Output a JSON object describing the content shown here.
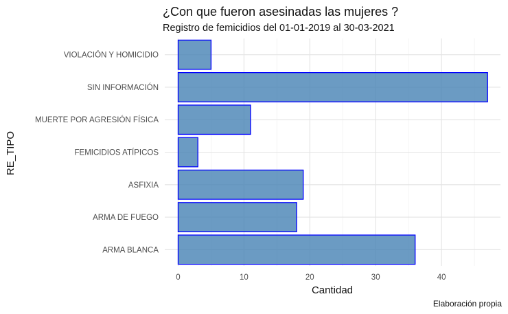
{
  "chart_data": {
    "type": "bar",
    "orientation": "horizontal",
    "title": "¿Con que fueron asesinadas las mujeres ?",
    "subtitle": "Registro de femicidios del 01-01-2019 al 30-03-2021",
    "caption": "Elaboración propia",
    "xlabel": "Cantidad",
    "ylabel": "RE_TIPO",
    "categories": [
      "VIOLACIÓN Y HOMICIDIO",
      "SIN INFORMACIÓN",
      "MUERTE POR AGRESIÓN FÍSICA",
      "FEMICIDIOS ATÍPICOS",
      "ASFIXIA",
      "ARMA DE FUEGO",
      "ARMA BLANCA"
    ],
    "values": [
      5,
      47,
      11,
      3,
      19,
      18,
      36
    ],
    "xlim": [
      0,
      49
    ],
    "xticks": [
      0,
      10,
      20,
      30,
      40
    ],
    "grid": true,
    "legend": "none",
    "colors": {
      "bar_fill": "#4682b4",
      "bar_stroke": "#0000ff",
      "grid_major": "#e3e3e3",
      "grid_minor": "#f1f1f1",
      "axis_text": "#4d4d4d"
    }
  }
}
